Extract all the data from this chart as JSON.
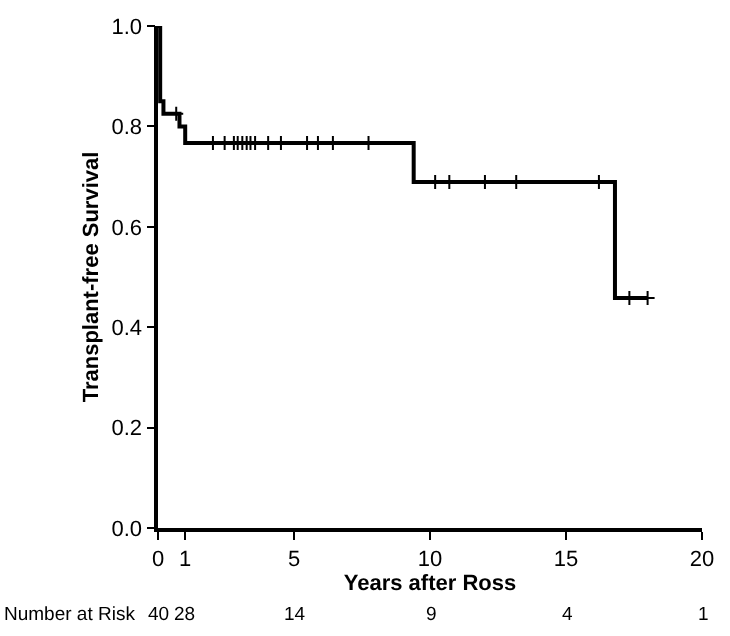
{
  "chart_data": {
    "type": "step",
    "xlabel": "Years after Ross",
    "ylabel": "Transplant-free Survival",
    "xlim": [
      0,
      20
    ],
    "xticks": [
      0,
      1,
      5,
      10,
      15,
      20
    ],
    "ylim": [
      0,
      1
    ],
    "yticks": [
      {
        "value": 0,
        "label": "0.0"
      },
      0.2,
      0.4,
      0.6,
      0.8,
      {
        "value": 1,
        "label": "1.0"
      }
    ],
    "series": [
      {
        "color": "#000000",
        "x": [
          0,
          0.08,
          0.2,
          0.79,
          1.0,
          9.4,
          16.8,
          18.0
        ],
        "values": [
          1.0,
          0.85,
          0.825,
          0.8,
          0.767,
          0.689,
          0.458,
          0.458
        ]
      },
      {
        "type": "scatter",
        "marker": "cross",
        "color": "#000000",
        "x": [
          0.67,
          2.02,
          2.45,
          2.79,
          2.93,
          3.1,
          3.26,
          3.4,
          3.57,
          4.05,
          4.52,
          5.48,
          5.88,
          6.43,
          7.74,
          10.19,
          10.71,
          12.02,
          13.17,
          16.21,
          17.33,
          18.0
        ],
        "values": [
          0.825,
          0.767,
          0.767,
          0.767,
          0.767,
          0.767,
          0.767,
          0.767,
          0.767,
          0.767,
          0.767,
          0.767,
          0.767,
          0.767,
          0.767,
          0.689,
          0.689,
          0.689,
          0.689,
          0.689,
          0.458,
          0.458
        ]
      }
    ],
    "annotations": [
      "Number at Risk",
      "40",
      "28",
      "14",
      "9",
      "4",
      "1"
    ]
  }
}
